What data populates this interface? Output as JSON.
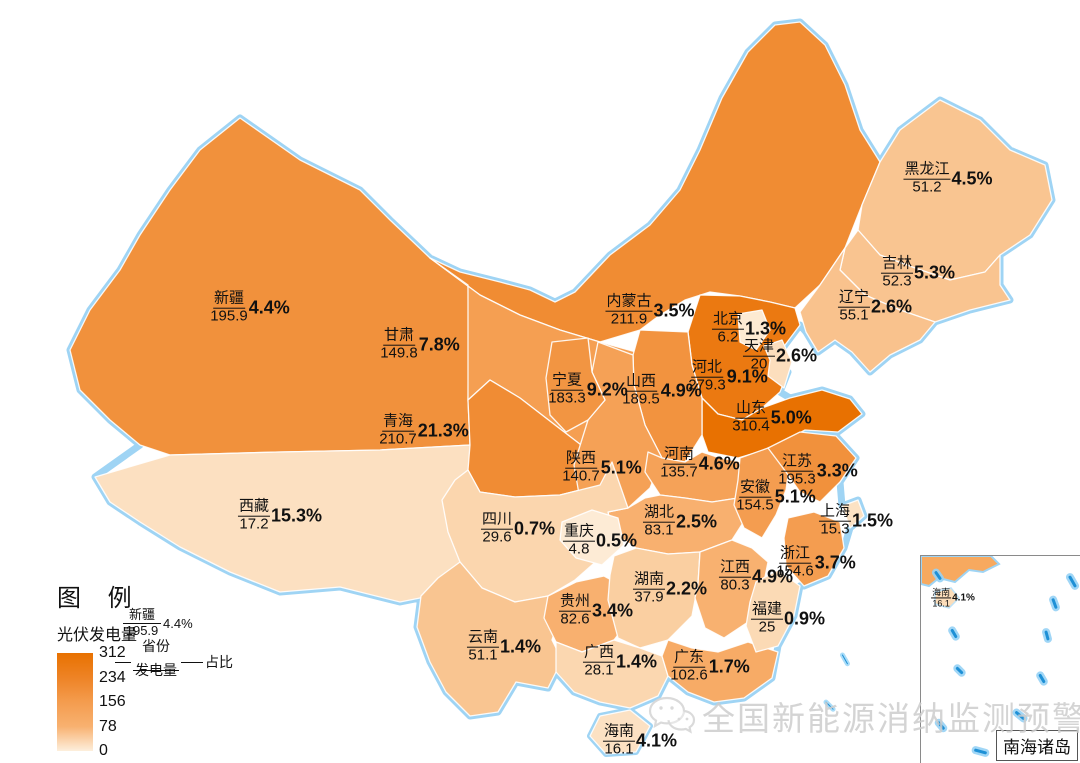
{
  "legend": {
    "title": "图 例",
    "subtitle": "光伏发电量",
    "scale_ticks": [
      "312",
      "234",
      "156",
      "78",
      "0"
    ],
    "scale_colors": {
      "top": "#E87100",
      "bottom": "#FDEFDC"
    },
    "example": {
      "province": "新疆",
      "value": "195.9",
      "pct": "4.4%",
      "key_province": "省份",
      "key_value": "发电量",
      "key_pct": "占比"
    }
  },
  "inset": {
    "corner_label": "南海诸岛",
    "hainan": {
      "name": "海南",
      "value": "16.1",
      "pct": "4.1%"
    }
  },
  "watermark": "全国新能源消纳监测预警中心",
  "chart_data": {
    "type": "heatmap",
    "subtype": "choropleth-map-of-china",
    "title": "光伏发电量",
    "legend_title": "图 例",
    "colorscale": {
      "min": 0,
      "max": 312,
      "ticks": [
        312,
        234,
        156,
        78,
        0
      ],
      "min_color": "#FDEFDC",
      "max_color": "#E87100"
    },
    "value_label_format": "省份 / 发电量 — 占比",
    "provinces": [
      {
        "id": "xinjiang",
        "name": "新疆",
        "value": "195.9",
        "pct": "4.4%"
      },
      {
        "id": "xizang",
        "name": "西藏",
        "value": "17.2",
        "pct": "15.3%"
      },
      {
        "id": "qinghai",
        "name": "青海",
        "value": "210.7",
        "pct": "21.3%"
      },
      {
        "id": "gansu",
        "name": "甘肃",
        "value": "149.8",
        "pct": "7.8%"
      },
      {
        "id": "neimenggu",
        "name": "内蒙古",
        "value": "211.9",
        "pct": "3.5%"
      },
      {
        "id": "heilongjiang",
        "name": "黑龙江",
        "value": "51.2",
        "pct": "4.5%"
      },
      {
        "id": "jilin",
        "name": "吉林",
        "value": "52.3",
        "pct": "5.3%"
      },
      {
        "id": "liaoning",
        "name": "辽宁",
        "value": "55.1",
        "pct": "2.6%"
      },
      {
        "id": "beijing",
        "name": "北京",
        "value": "6.2",
        "pct": "1.3%"
      },
      {
        "id": "tianjin",
        "name": "天津",
        "value": "20",
        "pct": "2.6%"
      },
      {
        "id": "hebei",
        "name": "河北",
        "value": "279.3",
        "pct": "9.1%"
      },
      {
        "id": "shanxi",
        "name": "山西",
        "value": "189.5",
        "pct": "4.9%"
      },
      {
        "id": "ningxia",
        "name": "宁夏",
        "value": "183.3",
        "pct": "9.2%"
      },
      {
        "id": "shaanxi",
        "name": "陕西",
        "value": "140.7",
        "pct": "5.1%"
      },
      {
        "id": "shandong",
        "name": "山东",
        "value": "310.4",
        "pct": "5.0%"
      },
      {
        "id": "henan",
        "name": "河南",
        "value": "135.7",
        "pct": "4.6%"
      },
      {
        "id": "jiangsu",
        "name": "江苏",
        "value": "195.3",
        "pct": "3.3%"
      },
      {
        "id": "anhui",
        "name": "安徽",
        "value": "154.5",
        "pct": "5.1%"
      },
      {
        "id": "shanghai",
        "name": "上海",
        "value": "15.3",
        "pct": "1.5%"
      },
      {
        "id": "zhejiang",
        "name": "浙江",
        "value": "154.6",
        "pct": "3.7%"
      },
      {
        "id": "jiangxi",
        "name": "江西",
        "value": "80.3",
        "pct": "4.9%"
      },
      {
        "id": "hubei",
        "name": "湖北",
        "value": "83.1",
        "pct": "2.5%"
      },
      {
        "id": "hunan",
        "name": "湖南",
        "value": "37.9",
        "pct": "2.2%"
      },
      {
        "id": "chongqing",
        "name": "重庆",
        "value": "4.8",
        "pct": "0.5%"
      },
      {
        "id": "sichuan",
        "name": "四川",
        "value": "29.6",
        "pct": "0.7%"
      },
      {
        "id": "guizhou",
        "name": "贵州",
        "value": "82.6",
        "pct": "3.4%"
      },
      {
        "id": "yunnan",
        "name": "云南",
        "value": "51.1",
        "pct": "1.4%"
      },
      {
        "id": "guangxi",
        "name": "广西",
        "value": "28.1",
        "pct": "1.4%"
      },
      {
        "id": "guangdong",
        "name": "广东",
        "value": "102.6",
        "pct": "1.7%"
      },
      {
        "id": "fujian",
        "name": "福建",
        "value": "25",
        "pct": "0.9%"
      },
      {
        "id": "hainan",
        "name": "海南",
        "value": "16.1",
        "pct": "4.1%"
      }
    ]
  }
}
